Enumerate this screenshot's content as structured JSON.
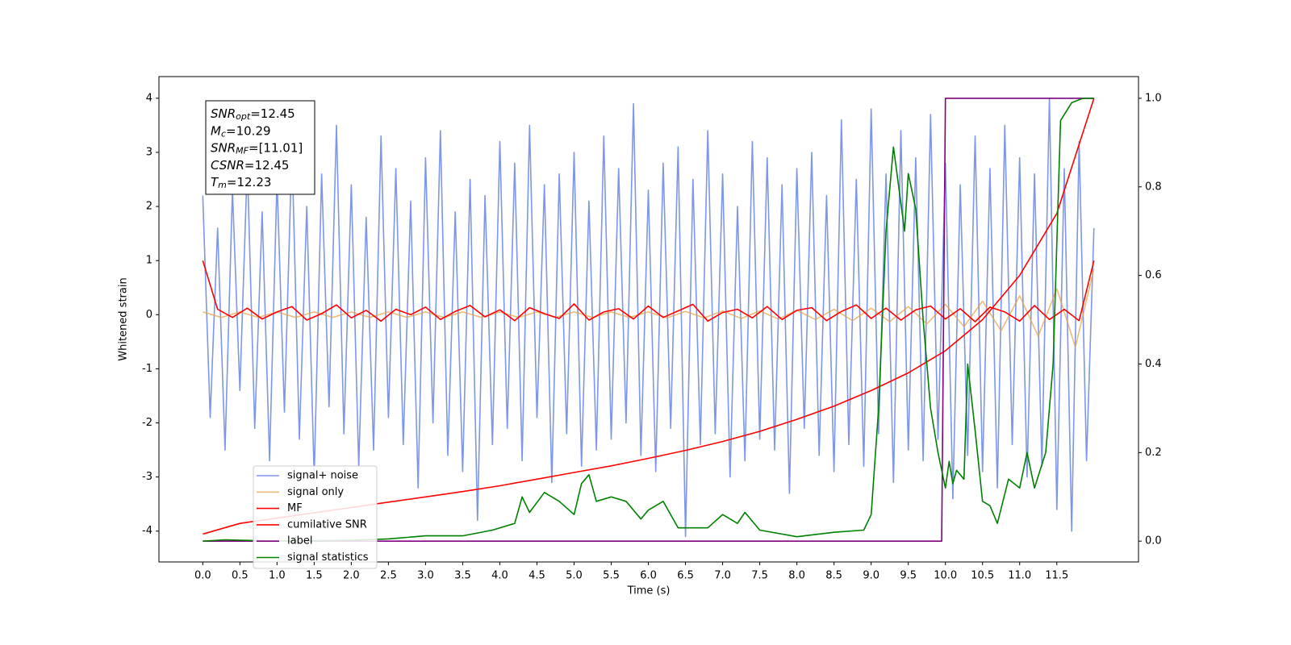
{
  "chart_data": {
    "type": "line",
    "xlabel": "Time (s)",
    "ylabel": "Whitened strain",
    "xlim": [
      -0.59,
      12.6
    ],
    "ylim": [
      -4.57,
      4.4
    ],
    "y2lim": [
      -0.047,
      1.049
    ],
    "xticks": [
      {
        "value": 0,
        "label": "0.0"
      },
      {
        "value": 0.5,
        "label": "0.5"
      },
      {
        "value": 1,
        "label": "1.0"
      },
      {
        "value": 1.5,
        "label": "1.5"
      },
      {
        "value": 2,
        "label": "2.0"
      },
      {
        "value": 2.5,
        "label": "2.5"
      },
      {
        "value": 3,
        "label": "3.0"
      },
      {
        "value": 3.5,
        "label": "3.5"
      },
      {
        "value": 4,
        "label": "4.0"
      },
      {
        "value": 4.5,
        "label": "4.5"
      },
      {
        "value": 5,
        "label": "5.0"
      },
      {
        "value": 5.5,
        "label": "5.5"
      },
      {
        "value": 6,
        "label": "6.0"
      },
      {
        "value": 6.5,
        "label": "6.5"
      },
      {
        "value": 7,
        "label": "7.0"
      },
      {
        "value": 7.5,
        "label": "7.5"
      },
      {
        "value": 8,
        "label": "8.0"
      },
      {
        "value": 8.5,
        "label": "8.5"
      },
      {
        "value": 9,
        "label": "9.0"
      },
      {
        "value": 9.5,
        "label": "9.5"
      },
      {
        "value": 10,
        "label": "10.0"
      },
      {
        "value": 10.5,
        "label": "10.5"
      },
      {
        "value": 11,
        "label": "11.0"
      },
      {
        "value": 11.5,
        "label": "11.5"
      }
    ],
    "yticks": [
      -4,
      -3,
      -2,
      -1,
      0,
      1,
      2,
      3,
      4
    ],
    "y2ticks": [
      {
        "value": 0,
        "label": "0.0"
      },
      0.2,
      0.4,
      0.6,
      0.8,
      {
        "value": 1,
        "label": "1.0"
      }
    ],
    "legend": "lower left",
    "annotation": [
      {
        "symbol": "SNR",
        "subscript": "opt",
        "text": "=12.45"
      },
      {
        "symbol": "M",
        "subscript": "c",
        "text": "=10.29"
      },
      {
        "symbol": "SNR",
        "subscript": "MF",
        "text": "=[11.01]"
      },
      {
        "symbol": "CSNR",
        "text": "=12.45"
      },
      {
        "symbol": "T",
        "subscript": "m",
        "text": "=12.23"
      }
    ],
    "series": [
      {
        "name": "signal+ noise",
        "color": "#6f8be6",
        "opacity": 0.9,
        "x": [
          0,
          0.1,
          0.2,
          0.3,
          0.4,
          0.5,
          0.6,
          0.7,
          0.8,
          0.9,
          1,
          1.1,
          1.2,
          1.3,
          1.4,
          1.5,
          1.6,
          1.7,
          1.8,
          1.9,
          2,
          2.1,
          2.2,
          2.3,
          2.4,
          2.5,
          2.6,
          2.7,
          2.8,
          2.9,
          3,
          3.1,
          3.2,
          3.3,
          3.4,
          3.5,
          3.6,
          3.7,
          3.8,
          3.9,
          4,
          4.1,
          4.2,
          4.3,
          4.4,
          4.5,
          4.6,
          4.7,
          4.8,
          4.9,
          5,
          5.1,
          5.2,
          5.3,
          5.4,
          5.5,
          5.6,
          5.7,
          5.8,
          5.9,
          6,
          6.1,
          6.2,
          6.3,
          6.4,
          6.5,
          6.6,
          6.7,
          6.8,
          6.9,
          7,
          7.1,
          7.2,
          7.3,
          7.4,
          7.5,
          7.6,
          7.7,
          7.8,
          7.9,
          8,
          8.1,
          8.2,
          8.3,
          8.4,
          8.5,
          8.6,
          8.7,
          8.8,
          8.9,
          9,
          9.1,
          9.2,
          9.3,
          9.4,
          9.5,
          9.6,
          9.7,
          9.8,
          9.9,
          10,
          10.1,
          10.2,
          10.3,
          10.4,
          10.5,
          10.6,
          10.7,
          10.8,
          10.9,
          11,
          11.1,
          11.2,
          11.3,
          11.4,
          11.5,
          11.6,
          11.7,
          11.8,
          11.9,
          12
        ],
        "values": [
          2.2,
          -1.9,
          1.6,
          -2.5,
          2.3,
          -1.4,
          2.8,
          -2.1,
          1.9,
          -2.7,
          2.5,
          -1.8,
          3.1,
          -2.3,
          2.0,
          -3.0,
          2.6,
          -1.7,
          3.5,
          -2.2,
          2.4,
          -2.8,
          1.8,
          -2.5,
          3.3,
          -1.9,
          2.7,
          -2.4,
          2.1,
          -3.2,
          2.9,
          -2.0,
          3.4,
          -2.6,
          1.9,
          -2.9,
          2.5,
          -3.8,
          2.2,
          -2.4,
          3.2,
          -2.1,
          2.8,
          -2.7,
          3.5,
          -1.9,
          2.4,
          -3.1,
          2.6,
          -2.2,
          3.0,
          -2.8,
          2.1,
          -2.5,
          3.3,
          -2.3,
          2.7,
          -2.0,
          3.9,
          -2.6,
          2.3,
          -2.9,
          2.8,
          -2.1,
          3.1,
          -4.1,
          2.5,
          -2.4,
          3.4,
          -2.2,
          2.6,
          -3.0,
          2.0,
          -2.7,
          3.2,
          -2.3,
          2.9,
          -2.5,
          2.4,
          -3.3,
          2.7,
          -2.1,
          3.0,
          -2.6,
          2.2,
          -2.9,
          3.6,
          -2.4,
          2.5,
          -2.8,
          3.8,
          -2.2,
          2.6,
          -3.1,
          3.4,
          -2.5,
          2.9,
          -2.7,
          3.7,
          -2.3,
          2.8,
          -3.4,
          2.4,
          -2.6,
          3.3,
          -2.9,
          2.7,
          -3.2,
          3.5,
          -2.4,
          2.9,
          -3.0,
          2.6,
          -2.8,
          4.0,
          -3.6,
          2.7,
          -4.0,
          3.2,
          -2.7,
          1.6
        ]
      },
      {
        "name": "signal only",
        "color": "#e6a040",
        "opacity": 0.7,
        "x": [
          0,
          0.25,
          0.5,
          0.75,
          1,
          1.25,
          1.5,
          1.75,
          2,
          2.25,
          2.5,
          2.75,
          3,
          3.25,
          3.5,
          3.75,
          4,
          4.25,
          4.5,
          4.75,
          5,
          5.25,
          5.5,
          5.75,
          6,
          6.25,
          6.5,
          6.75,
          7,
          7.25,
          7.5,
          7.75,
          8,
          8.25,
          8.5,
          8.75,
          9,
          9.25,
          9.5,
          9.75,
          10,
          10.25,
          10.5,
          10.75,
          11,
          11.25,
          11.5,
          11.75,
          12
        ],
        "values": [
          0.05,
          -0.05,
          0.05,
          -0.05,
          0.05,
          -0.05,
          0.05,
          -0.05,
          0.05,
          -0.05,
          0.05,
          -0.05,
          0.05,
          -0.05,
          0.05,
          -0.05,
          0.05,
          -0.05,
          0.05,
          -0.05,
          0.05,
          -0.05,
          0.05,
          -0.05,
          0.05,
          -0.06,
          0.06,
          -0.06,
          0.07,
          -0.07,
          0.07,
          -0.08,
          0.08,
          -0.09,
          0.1,
          -0.11,
          0.12,
          -0.13,
          0.15,
          -0.17,
          0.19,
          -0.22,
          0.25,
          -0.3,
          0.35,
          -0.4,
          0.48,
          -0.6,
          0.85
        ]
      },
      {
        "name": "MF",
        "color": "#ff0000",
        "opacity": 1,
        "x": [
          0,
          0.2,
          0.4,
          0.6,
          0.8,
          1,
          1.2,
          1.4,
          1.6,
          1.8,
          2,
          2.2,
          2.4,
          2.6,
          2.8,
          3,
          3.2,
          3.4,
          3.6,
          3.8,
          4,
          4.2,
          4.4,
          4.6,
          4.8,
          5,
          5.2,
          5.4,
          5.6,
          5.8,
          6,
          6.2,
          6.4,
          6.6,
          6.8,
          7,
          7.2,
          7.4,
          7.6,
          7.8,
          8,
          8.2,
          8.4,
          8.6,
          8.8,
          9,
          9.2,
          9.4,
          9.6,
          9.8,
          10,
          10.2,
          10.4,
          10.6,
          10.8,
          11,
          11.2,
          11.4,
          11.6,
          11.8,
          12
        ],
        "values": [
          1.0,
          0.1,
          -0.05,
          0.12,
          -0.08,
          0.05,
          0.15,
          -0.1,
          0.02,
          0.18,
          -0.06,
          0.08,
          -0.12,
          0.1,
          0.0,
          0.14,
          -0.09,
          0.06,
          0.17,
          -0.04,
          0.09,
          -0.11,
          0.13,
          0.02,
          -0.07,
          0.2,
          -0.1,
          0.05,
          0.11,
          -0.08,
          0.16,
          -0.05,
          0.07,
          0.19,
          -0.12,
          0.04,
          0.1,
          -0.06,
          0.15,
          -0.09,
          0.08,
          0.13,
          -0.11,
          0.06,
          0.18,
          -0.07,
          0.12,
          -0.1,
          0.09,
          0.16,
          -0.08,
          0.11,
          -0.13,
          0.14,
          0.05,
          -0.12,
          0.17,
          -0.09,
          0.1,
          -0.11,
          1.0
        ]
      },
      {
        "name": "cumilative SNR",
        "color": "#ff0000",
        "opacity": 1,
        "axis": "y2",
        "x": [
          0,
          0.5,
          1,
          1.5,
          2,
          2.5,
          3,
          3.5,
          4,
          4.5,
          5,
          5.5,
          6,
          6.5,
          7,
          7.5,
          8,
          8.5,
          9,
          9.5,
          10,
          10.5,
          11,
          11.5,
          12
        ],
        "values": [
          0.016,
          0.04,
          0.052,
          0.064,
          0.076,
          0.088,
          0.1,
          0.112,
          0.125,
          0.14,
          0.155,
          0.17,
          0.187,
          0.205,
          0.225,
          0.248,
          0.275,
          0.305,
          0.34,
          0.38,
          0.43,
          0.5,
          0.6,
          0.74,
          1.0
        ]
      },
      {
        "name": "label",
        "color": "#800080",
        "opacity": 1,
        "axis": "y2",
        "x": [
          0,
          9.95,
          10.0,
          12.0
        ],
        "values": [
          0,
          0,
          1,
          1
        ]
      },
      {
        "name": "signal statistics",
        "color": "#008000",
        "opacity": 1,
        "axis": "y2",
        "x": [
          0,
          0.3,
          1,
          2,
          2.5,
          3,
          3.5,
          3.9,
          4.2,
          4.3,
          4.4,
          4.6,
          4.8,
          5,
          5.1,
          5.2,
          5.3,
          5.5,
          5.7,
          5.9,
          6,
          6.2,
          6.4,
          6.8,
          7,
          7.2,
          7.3,
          7.5,
          8,
          8.5,
          8.9,
          9,
          9.1,
          9.2,
          9.3,
          9.45,
          9.5,
          9.6,
          9.7,
          9.8,
          9.9,
          10,
          10.05,
          10.1,
          10.15,
          10.25,
          10.3,
          10.4,
          10.5,
          10.6,
          10.7,
          10.85,
          11,
          11.1,
          11.2,
          11.35,
          11.45,
          11.55,
          11.7,
          11.85,
          12
        ],
        "values": [
          0,
          0.003,
          0,
          0.002,
          0.005,
          0.012,
          0.012,
          0.025,
          0.04,
          0.1,
          0.065,
          0.11,
          0.09,
          0.06,
          0.13,
          0.15,
          0.09,
          0.1,
          0.09,
          0.05,
          0.07,
          0.09,
          0.03,
          0.03,
          0.06,
          0.04,
          0.065,
          0.025,
          0.01,
          0.02,
          0.025,
          0.06,
          0.3,
          0.7,
          0.89,
          0.7,
          0.83,
          0.75,
          0.5,
          0.3,
          0.2,
          0.12,
          0.18,
          0.13,
          0.16,
          0.14,
          0.4,
          0.25,
          0.09,
          0.08,
          0.04,
          0.14,
          0.12,
          0.2,
          0.12,
          0.2,
          0.4,
          0.95,
          0.99,
          1.0,
          1.0
        ]
      }
    ]
  }
}
